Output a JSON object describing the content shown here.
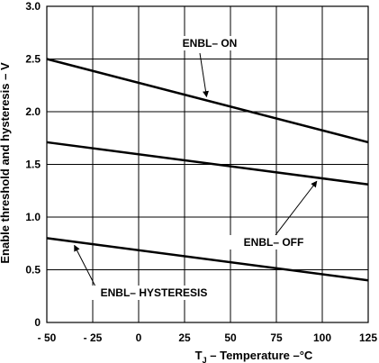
{
  "chart_data": {
    "type": "line",
    "xlabel_main": "T",
    "xlabel_sub": "J",
    "xlabel_rest": " –  Temperature –°C",
    "ylabel": "Enable threshold and hysteresis – V",
    "xlim": [
      -50,
      125
    ],
    "ylim": [
      0,
      3.0
    ],
    "x_ticks": [
      -50,
      -25,
      0,
      25,
      50,
      75,
      100,
      125
    ],
    "x_tick_labels": [
      "- 50",
      "- 25",
      "0",
      "25",
      "50",
      "75",
      "100",
      "125"
    ],
    "y_ticks": [
      0,
      0.5,
      1.0,
      1.5,
      2.0,
      2.5,
      3.0
    ],
    "y_tick_labels": [
      "0",
      "0.5",
      "1.0",
      "1.5",
      "2.0",
      "2.5",
      "3.0"
    ],
    "grid": true,
    "legend": "none",
    "series": [
      {
        "name": "ENBL – ON",
        "x": [
          -50,
          125
        ],
        "y": [
          2.5,
          1.71
        ]
      },
      {
        "name": "ENBL – OFF",
        "x": [
          -50,
          125
        ],
        "y": [
          1.71,
          1.31
        ]
      },
      {
        "name": "ENBL – HYSTERESIS",
        "x": [
          -50,
          125
        ],
        "y": [
          0.8,
          0.4
        ]
      }
    ],
    "annotations": [
      {
        "text": "ENBL– ON",
        "series": 0
      },
      {
        "text": "ENBL– OFF",
        "series": 1
      },
      {
        "text": "ENBL– HYSTERESIS",
        "series": 2
      }
    ]
  }
}
